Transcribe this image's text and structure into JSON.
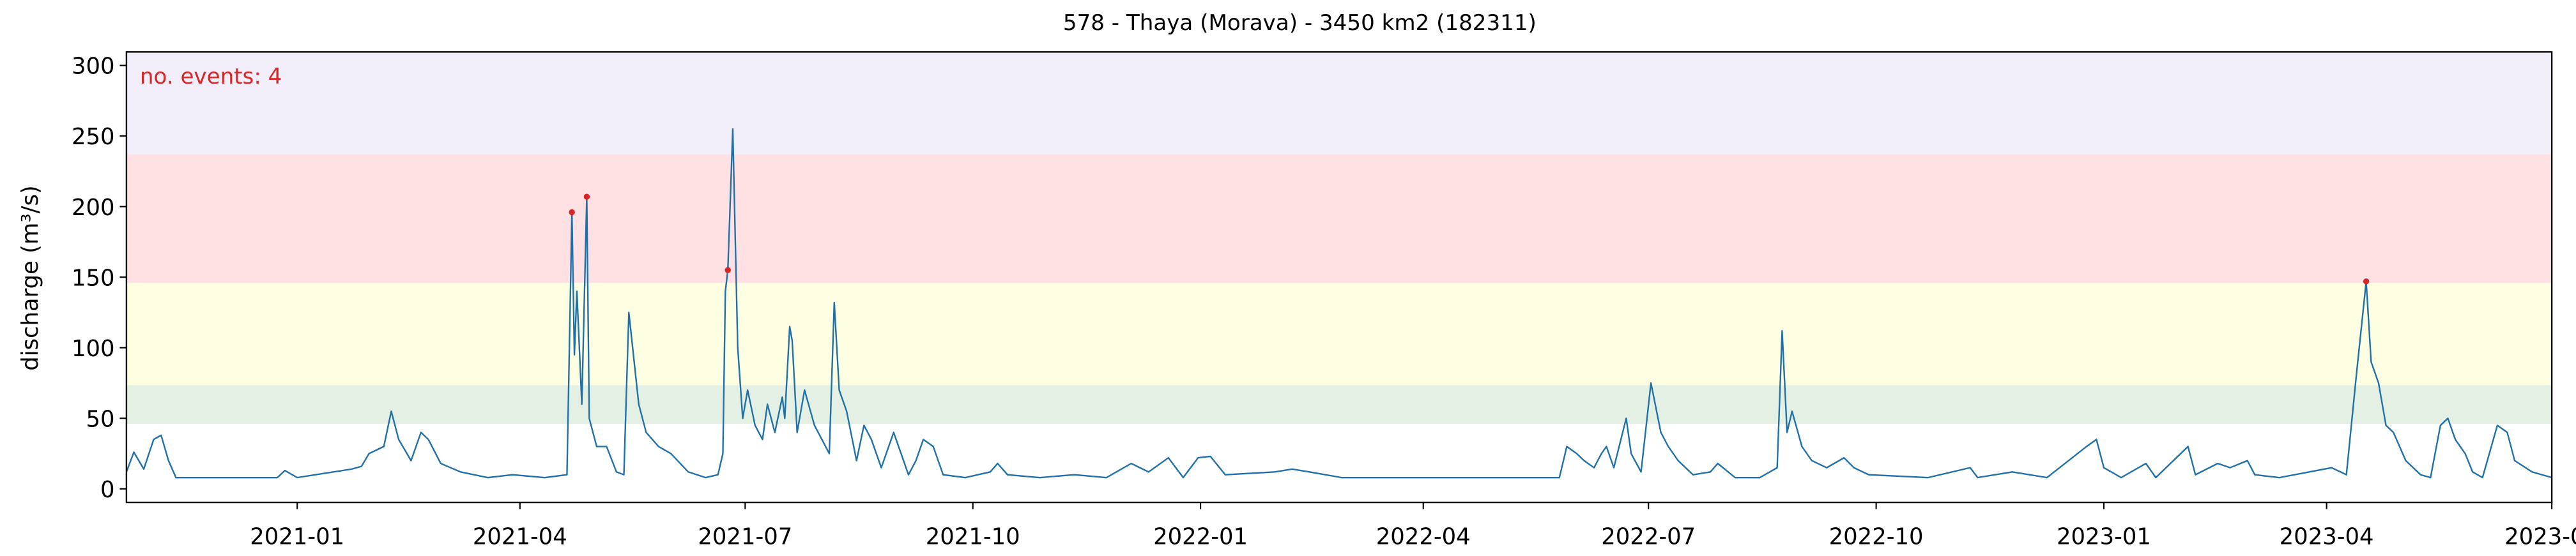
{
  "chart_data": {
    "type": "line",
    "title": "578 - Thaya (Morava) - 3450 km2 (182311)",
    "ylabel": "discharge (m³/s)",
    "annotation": "no. events: 4",
    "annotation_color": "#d62728",
    "xlim": [
      "2020-10-24",
      "2023-07-01"
    ],
    "xticks": [
      "2021-01",
      "2021-04",
      "2021-07",
      "2021-10",
      "2022-01",
      "2022-04",
      "2022-07",
      "2022-10",
      "2023-01",
      "2023-04",
      "2023-07"
    ],
    "ylim": [
      -9.6,
      309.6
    ],
    "yticks": [
      0,
      50,
      100,
      150,
      200,
      250,
      300
    ],
    "bands": [
      {
        "from": 46,
        "to": 73.5,
        "color": "#e4f0e4"
      },
      {
        "from": 73.5,
        "to": 146,
        "color": "#fefee2"
      },
      {
        "from": 146,
        "to": 237,
        "color": "#ffe1e4"
      },
      {
        "from": 237,
        "to": 309.6,
        "color": "#f1eefa"
      }
    ],
    "color": "#1f6fa8",
    "x": [
      "2020-10-24",
      "2020-10-27",
      "2020-10-31",
      "2020-11-04",
      "2020-11-07",
      "2020-11-10",
      "2020-11-13",
      "2020-12-24",
      "2020-12-27",
      "2021-01-01",
      "2021-01-23",
      "2021-01-27",
      "2021-01-30",
      "2021-02-05",
      "2021-02-08",
      "2021-02-11",
      "2021-02-16",
      "2021-02-20",
      "2021-02-23",
      "2021-02-28",
      "2021-03-08",
      "2021-03-19",
      "2021-03-29",
      "2021-04-11",
      "2021-04-20",
      "2021-04-22",
      "2021-04-23",
      "2021-04-24",
      "2021-04-26",
      "2021-04-28",
      "2021-04-29",
      "2021-05-02",
      "2021-05-06",
      "2021-05-10",
      "2021-05-13",
      "2021-05-15",
      "2021-05-19",
      "2021-05-22",
      "2021-05-27",
      "2021-06-01",
      "2021-06-08",
      "2021-06-15",
      "2021-06-20",
      "2021-06-22",
      "2021-06-23",
      "2021-06-24",
      "2021-06-26",
      "2021-06-28",
      "2021-06-30",
      "2021-07-02",
      "2021-07-05",
      "2021-07-08",
      "2021-07-10",
      "2021-07-13",
      "2021-07-16",
      "2021-07-17",
      "2021-07-19",
      "2021-07-20",
      "2021-07-22",
      "2021-07-25",
      "2021-07-29",
      "2021-08-01",
      "2021-08-04",
      "2021-08-06",
      "2021-08-08",
      "2021-08-11",
      "2021-08-15",
      "2021-08-18",
      "2021-08-21",
      "2021-08-25",
      "2021-08-30",
      "2021-09-02",
      "2021-09-05",
      "2021-09-08",
      "2021-09-11",
      "2021-09-15",
      "2021-09-19",
      "2021-09-28",
      "2021-10-08",
      "2021-10-11",
      "2021-10-15",
      "2021-10-28",
      "2021-11-11",
      "2021-11-24",
      "2021-12-04",
      "2021-12-11",
      "2021-12-19",
      "2021-12-25",
      "2021-12-31",
      "2022-01-05",
      "2022-01-11",
      "2022-01-31",
      "2022-02-07",
      "2022-02-14",
      "2022-02-27",
      "2022-03-19",
      "2022-04-09",
      "2022-05-06",
      "2022-05-26",
      "2022-05-29",
      "2022-06-02",
      "2022-06-05",
      "2022-06-09",
      "2022-06-12",
      "2022-06-14",
      "2022-06-17",
      "2022-06-22",
      "2022-06-24",
      "2022-06-28",
      "2022-07-02",
      "2022-07-06",
      "2022-07-09",
      "2022-07-13",
      "2022-07-19",
      "2022-07-26",
      "2022-07-29",
      "2022-08-05",
      "2022-08-15",
      "2022-08-22",
      "2022-08-24",
      "2022-08-26",
      "2022-08-28",
      "2022-09-01",
      "2022-09-05",
      "2022-09-11",
      "2022-09-18",
      "2022-09-22",
      "2022-09-28",
      "2022-10-22",
      "2022-11-08",
      "2022-11-11",
      "2022-11-25",
      "2022-12-09",
      "2022-12-25",
      "2022-12-29",
      "2023-01-01",
      "2023-01-08",
      "2023-01-18",
      "2023-01-22",
      "2023-02-04",
      "2023-02-07",
      "2023-02-16",
      "2023-02-21",
      "2023-02-28",
      "2023-03-03",
      "2023-03-13",
      "2023-04-03",
      "2023-04-09",
      "2023-04-13",
      "2023-04-17",
      "2023-04-19",
      "2023-04-22",
      "2023-04-25",
      "2023-04-28",
      "2023-05-03",
      "2023-05-09",
      "2023-05-13",
      "2023-05-17",
      "2023-05-20",
      "2023-05-23",
      "2023-05-27",
      "2023-05-30",
      "2023-06-03",
      "2023-06-09",
      "2023-06-13",
      "2023-06-16",
      "2023-06-23",
      "2023-07-01"
    ],
    "values": [
      12,
      26,
      14,
      35,
      38,
      20,
      8,
      8,
      13,
      8,
      14,
      16,
      25,
      30,
      55,
      35,
      20,
      40,
      35,
      18,
      12,
      8,
      10,
      8,
      10,
      196,
      95,
      140,
      60,
      207,
      50,
      30,
      30,
      12,
      10,
      125,
      60,
      40,
      30,
      25,
      12,
      8,
      10,
      25,
      140,
      155,
      255,
      100,
      50,
      70,
      45,
      35,
      60,
      40,
      65,
      50,
      115,
      105,
      40,
      70,
      45,
      35,
      25,
      132,
      70,
      55,
      20,
      45,
      35,
      15,
      40,
      25,
      10,
      20,
      35,
      30,
      10,
      8,
      12,
      18,
      10,
      8,
      10,
      8,
      18,
      12,
      22,
      8,
      22,
      23,
      10,
      12,
      14,
      12,
      8,
      8,
      8,
      8,
      8,
      30,
      25,
      20,
      15,
      25,
      30,
      15,
      50,
      25,
      12,
      75,
      40,
      30,
      20,
      10,
      12,
      18,
      8,
      8,
      15,
      112,
      40,
      55,
      30,
      20,
      15,
      22,
      15,
      10,
      8,
      15,
      8,
      12,
      8,
      30,
      35,
      15,
      8,
      18,
      8,
      30,
      10,
      18,
      15,
      20,
      10,
      8,
      15,
      10,
      80,
      147,
      90,
      75,
      45,
      40,
      20,
      10,
      8,
      45,
      50,
      35,
      25,
      12,
      8,
      45,
      40,
      20,
      12,
      8
    ],
    "events": {
      "color": "#d62728",
      "x": [
        "2021-04-22",
        "2021-04-28",
        "2021-06-24",
        "2023-04-17"
      ],
      "values": [
        196,
        207,
        155,
        147
      ]
    }
  }
}
